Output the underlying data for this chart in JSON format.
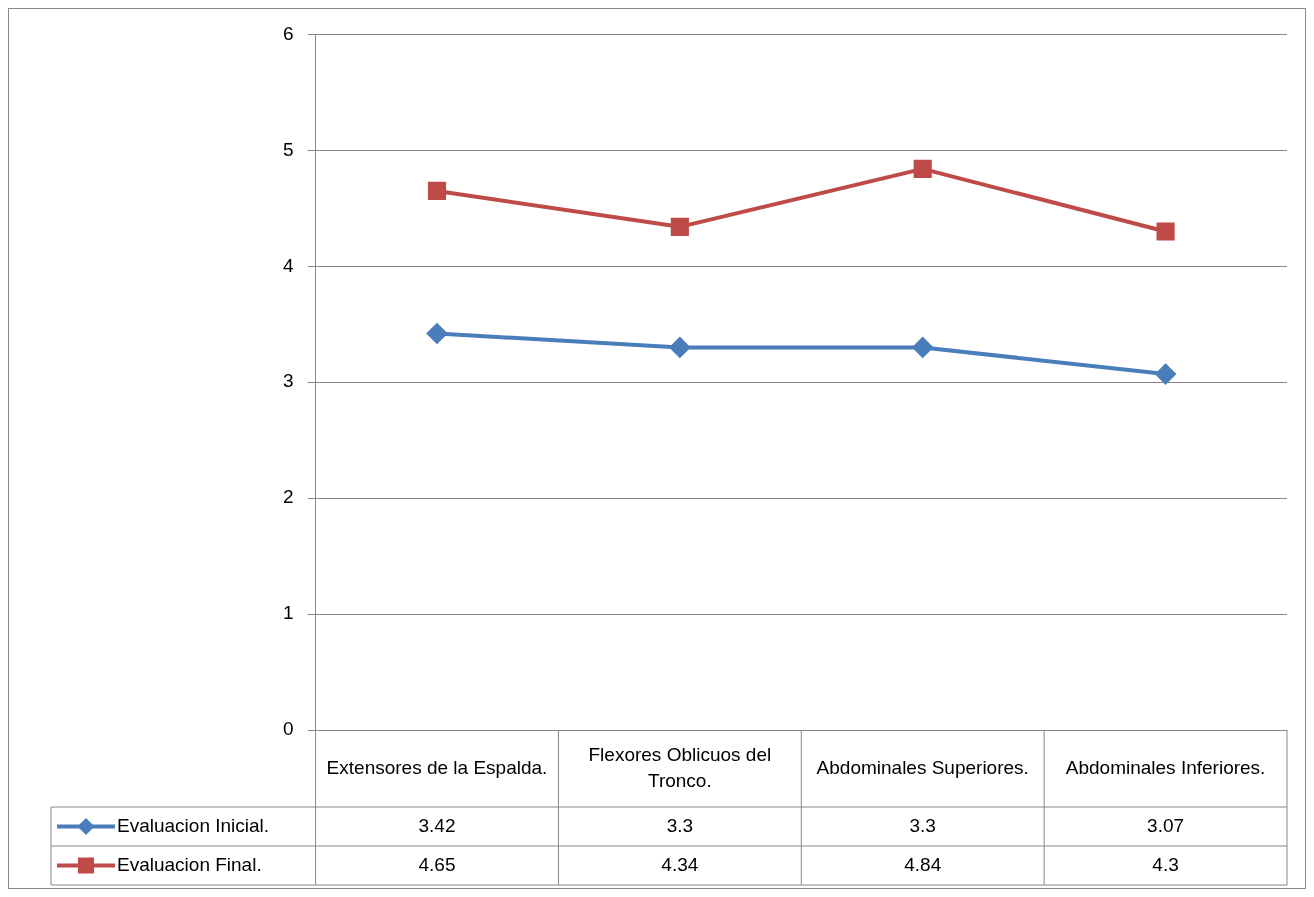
{
  "chart_data": {
    "type": "line",
    "categories": [
      "Extensores de la Espalda.",
      "Flexores Oblicuos del Tronco.",
      "Abdominales Superiores.",
      "Abdominales Inferiores."
    ],
    "series": [
      {
        "name": "Evaluacion Inicial.",
        "color": "#4a7ebb",
        "marker": "diamond",
        "values": [
          3.42,
          3.3,
          3.3,
          3.07
        ]
      },
      {
        "name": "Evaluacion Final.",
        "color": "#be4b48",
        "marker": "square",
        "values": [
          4.65,
          4.34,
          4.84,
          4.3
        ]
      }
    ],
    "ylim": [
      0,
      6
    ],
    "yticks": [
      0,
      1,
      2,
      3,
      4,
      5,
      6
    ],
    "grid": "y",
    "legend": "bottom",
    "data_labels": true,
    "line_style": "solid"
  }
}
